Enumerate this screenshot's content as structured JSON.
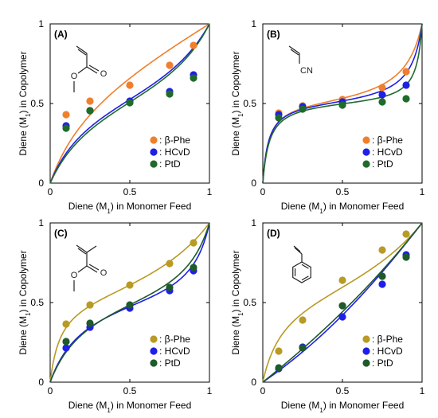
{
  "chart_data": [
    {
      "type": "scatter",
      "panel_label": "(A)",
      "xlabel": "Diene (M1) in Monomer Feed",
      "ylabel": "Diene (M1) in Copolymer",
      "xlim": [
        0,
        1
      ],
      "ylim": [
        0,
        1
      ],
      "x_ticks": [
        "0",
        "0.5",
        "1"
      ],
      "y_ticks": [
        "0",
        "0.5",
        "1"
      ],
      "legend_position": "bottom-right",
      "structure": "acrylate",
      "structure_labels": [
        "O",
        "O"
      ],
      "series": [
        {
          "name": "β-Phe",
          "color": "#f07f2c",
          "x": [
            0.1,
            0.25,
            0.5,
            0.75,
            0.9
          ],
          "y": [
            0.43,
            0.515,
            0.615,
            0.74,
            0.865
          ]
        },
        {
          "name": "HCvD",
          "color": "#1f1fe8",
          "x": [
            0.1,
            0.25,
            0.5,
            0.75,
            0.9
          ],
          "y": [
            0.36,
            0.455,
            0.515,
            0.575,
            0.68
          ]
        },
        {
          "name": "PtD",
          "color": "#1e6b2a",
          "x": [
            0.1,
            0.25,
            0.5,
            0.75,
            0.9
          ],
          "y": [
            0.345,
            0.455,
            0.505,
            0.56,
            0.66
          ]
        }
      ]
    },
    {
      "type": "scatter",
      "panel_label": "(B)",
      "xlabel": "Diene (M1) in Monomer Feed",
      "ylabel": "Diene (M1) in Copolymer",
      "xlim": [
        0,
        1
      ],
      "ylim": [
        0,
        1
      ],
      "x_ticks": [
        "0",
        "0.5",
        "1"
      ],
      "y_ticks": [
        "0",
        "0.5",
        "1"
      ],
      "legend_position": "bottom-right",
      "structure": "acrylonitrile",
      "structure_labels": [
        "CN"
      ],
      "series": [
        {
          "name": "β-Phe",
          "color": "#f07f2c",
          "x": [
            0.1,
            0.25,
            0.5,
            0.75,
            0.9
          ],
          "y": [
            0.44,
            0.485,
            0.525,
            0.6,
            0.7
          ]
        },
        {
          "name": "HCvD",
          "color": "#1f1fe8",
          "x": [
            0.1,
            0.25,
            0.5,
            0.75,
            0.9
          ],
          "y": [
            0.43,
            0.48,
            0.51,
            0.555,
            0.615
          ]
        },
        {
          "name": "PtD",
          "color": "#1e6b2a",
          "x": [
            0.1,
            0.25,
            0.5,
            0.75,
            0.9
          ],
          "y": [
            0.41,
            0.465,
            0.49,
            0.51,
            0.53
          ]
        }
      ]
    },
    {
      "type": "scatter",
      "panel_label": "(C)",
      "xlabel": "Diene (M1) in Monomer Feed",
      "ylabel": "Diene (M1) in Copolymer",
      "xlim": [
        0,
        1
      ],
      "ylim": [
        0,
        1
      ],
      "x_ticks": [
        "0",
        "0.5",
        "1"
      ],
      "y_ticks": [
        "0",
        "0.5",
        "1"
      ],
      "legend_position": "bottom-right",
      "structure": "methacrylate",
      "structure_labels": [
        "O",
        "O"
      ],
      "series": [
        {
          "name": "β-Phe",
          "color": "#b89a25",
          "x": [
            0.1,
            0.25,
            0.5,
            0.75,
            0.9
          ],
          "y": [
            0.365,
            0.485,
            0.61,
            0.745,
            0.875
          ]
        },
        {
          "name": "HCvD",
          "color": "#1f1fe8",
          "x": [
            0.1,
            0.25,
            0.5,
            0.75,
            0.9
          ],
          "y": [
            0.215,
            0.345,
            0.465,
            0.575,
            0.7
          ]
        },
        {
          "name": "PtD",
          "color": "#1e5a2a",
          "x": [
            0.1,
            0.25,
            0.5,
            0.75,
            0.9
          ],
          "y": [
            0.255,
            0.37,
            0.485,
            0.595,
            0.72
          ]
        }
      ]
    },
    {
      "type": "scatter",
      "panel_label": "(D)",
      "xlabel": "Diene (M1) in Monomer Feed",
      "ylabel": "Diene (M1) in Copolymer",
      "xlim": [
        0,
        1
      ],
      "ylim": [
        0,
        1
      ],
      "x_ticks": [
        "0",
        "0.5",
        "1"
      ],
      "y_ticks": [
        "0",
        "0.5",
        "1"
      ],
      "legend_position": "bottom-right",
      "structure": "styrene",
      "structure_labels": [],
      "series": [
        {
          "name": "β-Phe",
          "color": "#b89a25",
          "x": [
            0.1,
            0.25,
            0.5,
            0.75,
            0.9
          ],
          "y": [
            0.195,
            0.39,
            0.64,
            0.83,
            0.93
          ]
        },
        {
          "name": "HCvD",
          "color": "#1f1fe8",
          "x": [
            0.1,
            0.25,
            0.5,
            0.75,
            0.9
          ],
          "y": [
            0.085,
            0.22,
            0.41,
            0.615,
            0.8
          ]
        },
        {
          "name": "PtD",
          "color": "#1e5a2a",
          "x": [
            0.1,
            0.25,
            0.5,
            0.75,
            0.9
          ],
          "y": [
            0.09,
            0.215,
            0.48,
            0.665,
            0.785
          ]
        }
      ]
    }
  ]
}
